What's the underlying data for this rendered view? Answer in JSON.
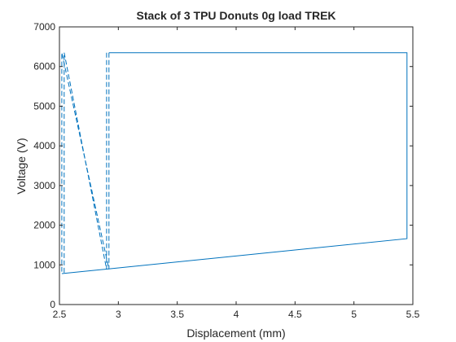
{
  "chart_data": {
    "type": "line",
    "title": "Stack of 3 TPU Donuts 0g load TREK",
    "xlabel": "Displacement (mm)",
    "ylabel": "Voltage (V)",
    "xlim": [
      2.5,
      5.5
    ],
    "ylim": [
      0,
      7000
    ],
    "xticks": [
      2.5,
      3,
      3.5,
      4,
      4.5,
      5,
      5.5
    ],
    "xtick_labels": [
      "2.5",
      "3",
      "3.5",
      "4",
      "4.5",
      "5",
      "5.5"
    ],
    "yticks": [
      0,
      1000,
      2000,
      3000,
      4000,
      5000,
      6000,
      7000
    ],
    "ytick_labels": [
      "0",
      "1000",
      "2000",
      "3000",
      "4000",
      "5000",
      "6000",
      "7000"
    ],
    "grid": false,
    "legend": "none",
    "series_color": "#0072BD",
    "series": [
      {
        "style": "solid",
        "x": [
          2.52,
          5.45,
          5.45,
          2.92
        ],
        "y": [
          780,
          1660,
          6350,
          6350
        ]
      },
      {
        "style": "dashed",
        "x": [
          2.92,
          2.92,
          2.52,
          2.52
        ],
        "y": [
          6350,
          890,
          6350,
          780
        ]
      },
      {
        "style": "dashed",
        "x": [
          2.9,
          2.9,
          2.54,
          2.54
        ],
        "y": [
          6350,
          890,
          6350,
          780
        ]
      }
    ]
  }
}
